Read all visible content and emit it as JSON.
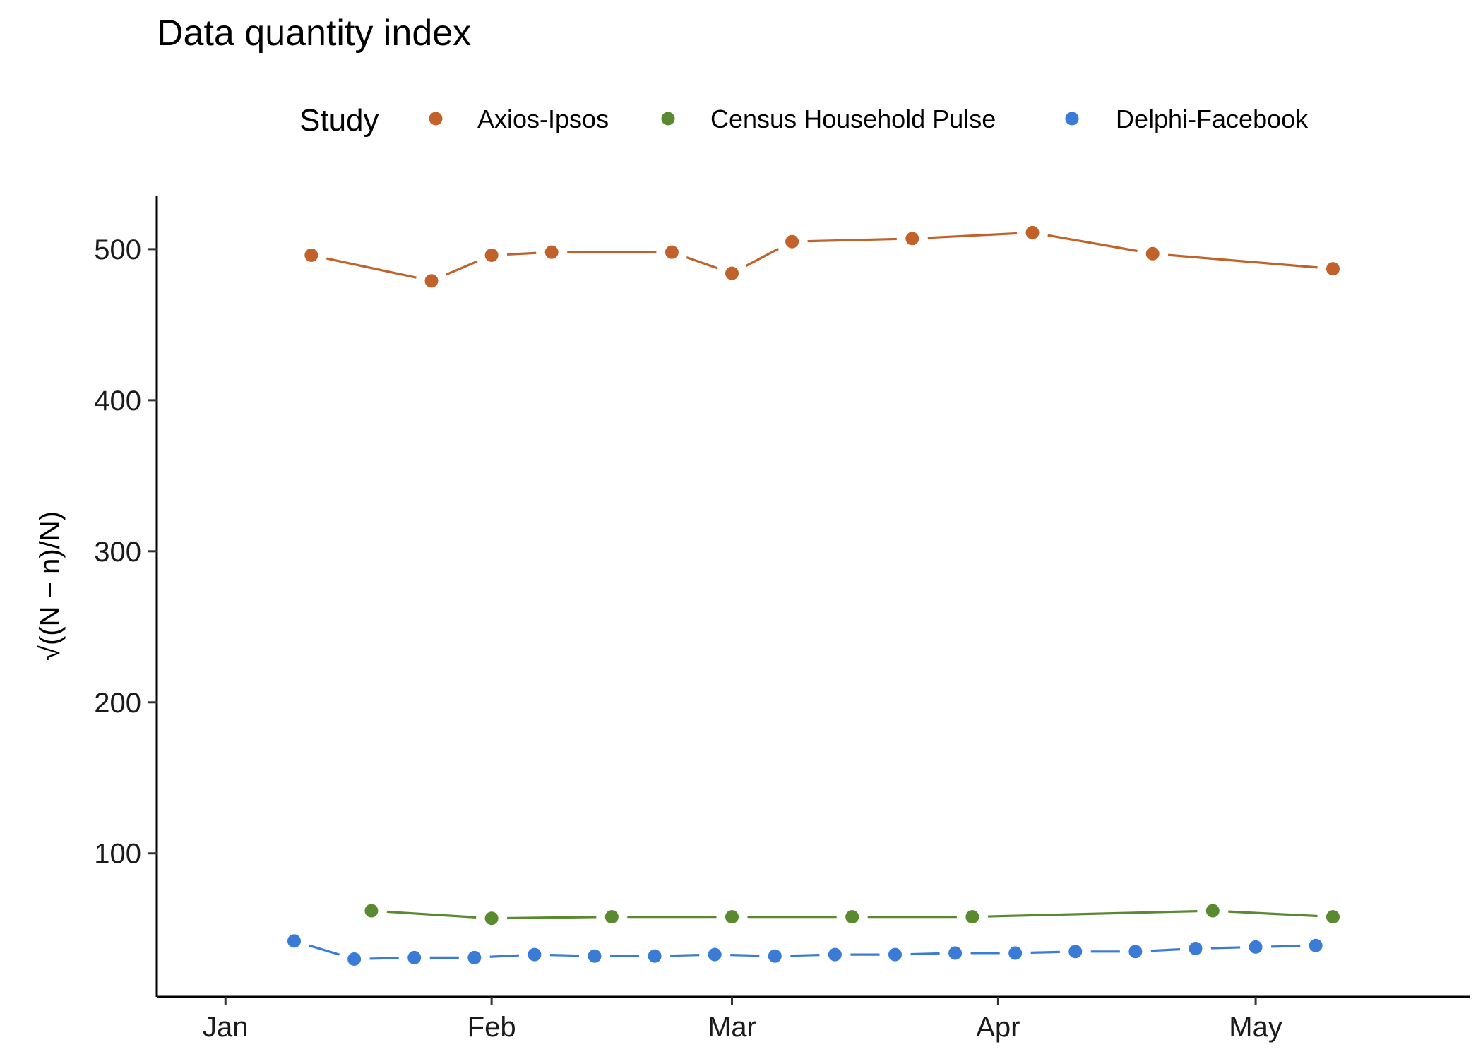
{
  "chart_data": {
    "type": "line",
    "title": "Data quantity index",
    "xlabel": "",
    "ylabel": "√((N − n)/N)",
    "x_ticks": [
      "Jan",
      "Feb",
      "Mar",
      "Apr",
      "May"
    ],
    "y_ticks": [
      "100",
      "200",
      "300",
      "400",
      "500"
    ],
    "ylim": [
      5,
      535
    ],
    "xlim": [
      "2020-12-24",
      "2021-05-26"
    ],
    "grid": false,
    "legend": {
      "title": "Study",
      "position": "top"
    },
    "series": [
      {
        "name": "Axios-Ipsos",
        "color": "#C0622A",
        "points": [
          [
            "2021-01-11",
            496
          ],
          [
            "2021-01-25",
            479
          ],
          [
            "2021-02-01",
            496
          ],
          [
            "2021-02-08",
            498
          ],
          [
            "2021-02-22",
            498
          ],
          [
            "2021-03-01",
            484
          ],
          [
            "2021-03-08",
            505
          ],
          [
            "2021-03-22",
            507
          ],
          [
            "2021-04-05",
            511
          ],
          [
            "2021-04-19",
            497
          ],
          [
            "2021-05-10",
            487
          ]
        ]
      },
      {
        "name": "Census Household Pulse",
        "color": "#5A8A2F",
        "points": [
          [
            "2021-01-18",
            62
          ],
          [
            "2021-02-01",
            57
          ],
          [
            "2021-02-15",
            58
          ],
          [
            "2021-03-01",
            58
          ],
          [
            "2021-03-15",
            58
          ],
          [
            "2021-03-29",
            58
          ],
          [
            "2021-04-26",
            62
          ],
          [
            "2021-05-10",
            58
          ]
        ]
      },
      {
        "name": "Delphi-Facebook",
        "color": "#3A7BD5",
        "points": [
          [
            "2021-01-09",
            42
          ],
          [
            "2021-01-16",
            30
          ],
          [
            "2021-01-23",
            31
          ],
          [
            "2021-01-30",
            31
          ],
          [
            "2021-02-06",
            33
          ],
          [
            "2021-02-13",
            32
          ],
          [
            "2021-02-20",
            32
          ],
          [
            "2021-02-27",
            33
          ],
          [
            "2021-03-06",
            32
          ],
          [
            "2021-03-13",
            33
          ],
          [
            "2021-03-20",
            33
          ],
          [
            "2021-03-27",
            34
          ],
          [
            "2021-04-03",
            34
          ],
          [
            "2021-04-10",
            35
          ],
          [
            "2021-04-17",
            35
          ],
          [
            "2021-04-24",
            37
          ],
          [
            "2021-05-01",
            38
          ],
          [
            "2021-05-08",
            39
          ]
        ]
      }
    ]
  }
}
